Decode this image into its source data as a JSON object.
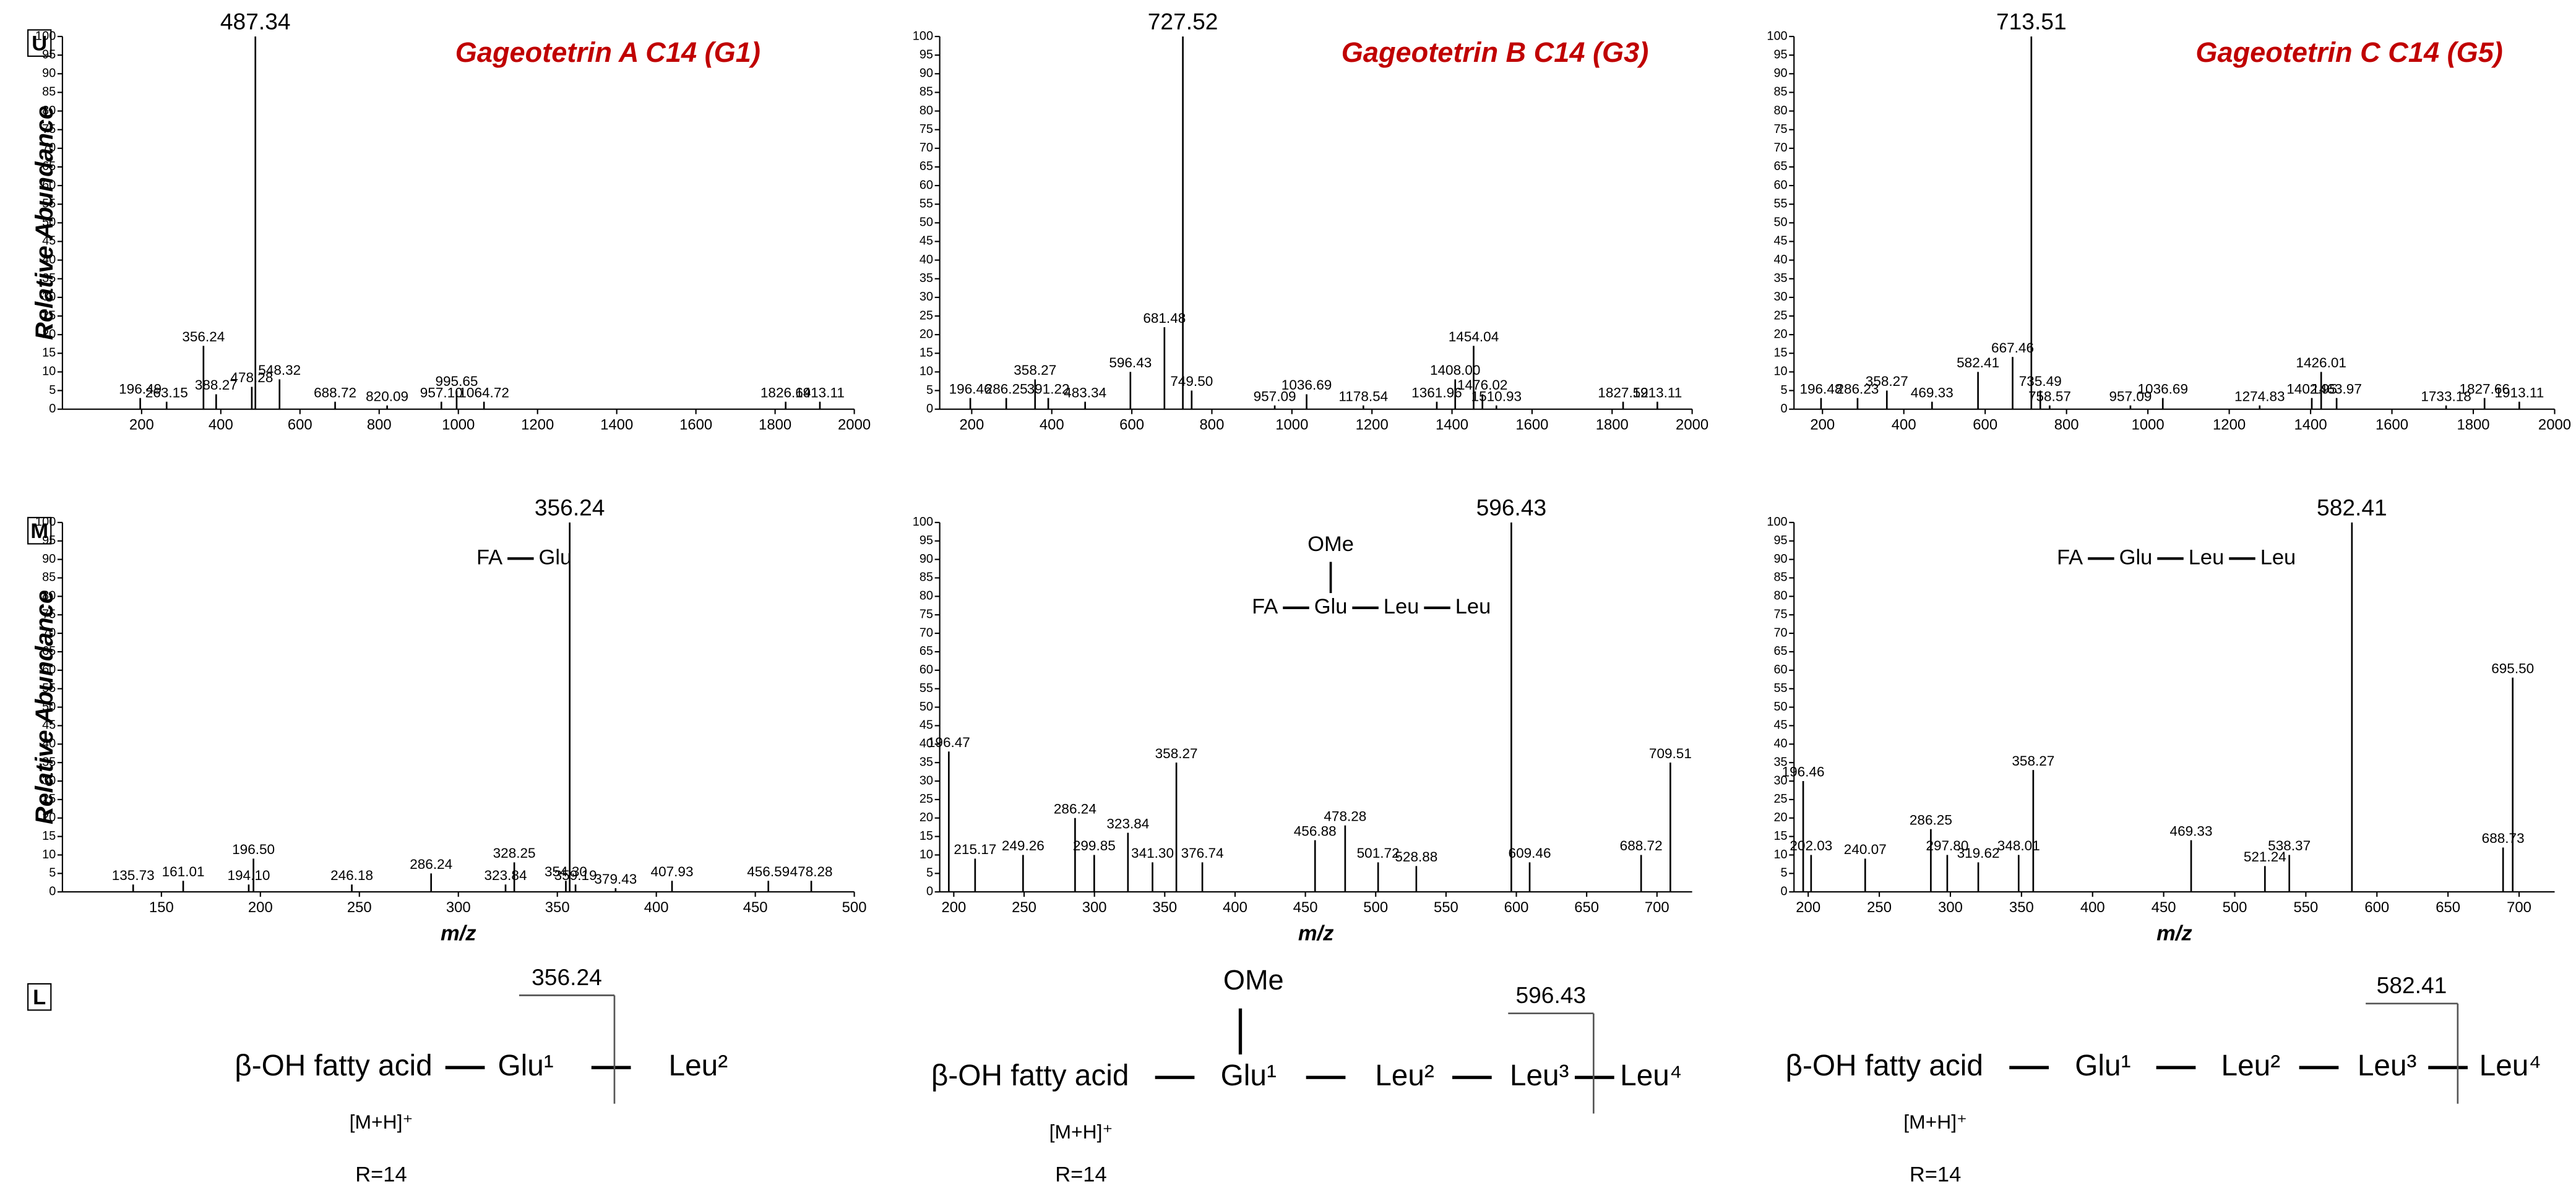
{
  "panel_labels": [
    "U",
    "M",
    "L"
  ],
  "chart_data": [
    {
      "type": "stem",
      "title": "Gageotetrin A C14 (G1)",
      "ylabel": "Relative Abundance",
      "color": "#000000",
      "xlim": [
        0,
        2000
      ],
      "xticks": [
        200,
        400,
        600,
        800,
        1000,
        1200,
        1400,
        1600,
        1800,
        2000
      ],
      "ylim": [
        0,
        100
      ],
      "yticks": [
        0,
        5,
        10,
        15,
        20,
        25,
        30,
        35,
        40,
        45,
        50,
        55,
        60,
        65,
        70,
        75,
        80,
        85,
        90,
        95,
        100
      ],
      "x": [
        196.49,
        263.15,
        356.24,
        388.27,
        478.28,
        487.34,
        548.32,
        688.72,
        820.09,
        957.1,
        995.65,
        1064.72,
        1826.64,
        1913.11
      ],
      "x_labels": [
        "196.49",
        "263.15",
        "356.24",
        "388.27",
        "478.28",
        "487.34",
        "548.32",
        "688.72",
        "820.09",
        "957.10",
        "995.65",
        "1064.72",
        "1826.64",
        "1913.11"
      ],
      "values": [
        3,
        2,
        17,
        4,
        6,
        100,
        8,
        2,
        1,
        2,
        5,
        2,
        2,
        2
      ]
    },
    {
      "type": "stem",
      "title": "Gageotetrin B C14 (G3)",
      "color": "#000000",
      "xlim": [
        120,
        2000
      ],
      "xticks": [
        200,
        400,
        600,
        800,
        1000,
        1200,
        1400,
        1600,
        1800,
        2000
      ],
      "ylim": [
        0,
        100
      ],
      "yticks": [
        0,
        5,
        10,
        15,
        20,
        25,
        30,
        35,
        40,
        45,
        50,
        55,
        60,
        65,
        70,
        75,
        80,
        85,
        90,
        95,
        100
      ],
      "x": [
        196.46,
        286.25,
        358.27,
        391.22,
        483.34,
        596.43,
        681.48,
        727.52,
        749.5,
        957.09,
        1036.69,
        1178.54,
        1361.96,
        1408.0,
        1454.04,
        1476.02,
        1510.93,
        1827.52,
        1913.11
      ],
      "x_labels": [
        "196.46",
        "286.25",
        "358.27",
        "391.22",
        "483.34",
        "596.43",
        "681.48",
        "727.52",
        "749.50",
        "957.09",
        "1036.69",
        "1178.54",
        "1361.96",
        "1408.00",
        "1454.04",
        "1476.02",
        "1510.93",
        "1827.52",
        "1913.11"
      ],
      "values": [
        3,
        3,
        8,
        3,
        2,
        10,
        22,
        100,
        5,
        1,
        4,
        1,
        2,
        8,
        17,
        4,
        1,
        2,
        2
      ]
    },
    {
      "type": "stem",
      "title": "Gageotetrin C C14 (G5)",
      "color": "#000000",
      "xlim": [
        130,
        2000
      ],
      "xticks": [
        200,
        400,
        600,
        800,
        1000,
        1200,
        1400,
        1600,
        1800,
        2000
      ],
      "ylim": [
        0,
        100
      ],
      "yticks": [
        0,
        5,
        10,
        15,
        20,
        25,
        30,
        35,
        40,
        45,
        50,
        55,
        60,
        65,
        70,
        75,
        80,
        85,
        90,
        95,
        100
      ],
      "x": [
        196.48,
        286.23,
        358.27,
        469.33,
        582.41,
        667.46,
        713.51,
        735.49,
        758.57,
        957.09,
        1036.69,
        1274.83,
        1402.95,
        1426.01,
        1463.97,
        1733.18,
        1827.66,
        1913.11
      ],
      "x_labels": [
        "196.48",
        "286.23",
        "358.27",
        "469.33",
        "582.41",
        "667.46",
        "713.51",
        "735.49",
        "758.57",
        "957.09",
        "1036.69",
        "1274.83",
        "1402.95",
        "1426.01",
        "1463.97",
        "1733.18",
        "1827.66",
        "1913.11"
      ],
      "values": [
        3,
        3,
        5,
        2,
        10,
        14,
        100,
        5,
        1,
        1,
        3,
        1,
        3,
        10,
        3,
        1,
        3,
        2
      ]
    },
    {
      "type": "stem",
      "ylabel": "Relative Abundance",
      "xlabel": "m/z",
      "color": "#000000",
      "annotation": {
        "parts": [
          "FA",
          "Glu"
        ]
      },
      "xlim": [
        100,
        500
      ],
      "xticks": [
        150,
        200,
        250,
        300,
        350,
        400,
        450,
        500
      ],
      "ylim": [
        0,
        100
      ],
      "yticks": [
        0,
        5,
        10,
        15,
        20,
        25,
        30,
        35,
        40,
        45,
        50,
        55,
        60,
        65,
        70,
        75,
        80,
        85,
        90,
        95,
        100
      ],
      "x": [
        135.73,
        161.01,
        194.1,
        196.5,
        246.18,
        286.24,
        323.84,
        328.25,
        354.3,
        356.24,
        359.19,
        379.43,
        407.93,
        456.59,
        478.28
      ],
      "x_labels": [
        "135.73",
        "161.01",
        "194.10",
        "196.50",
        "246.18",
        "286.24",
        "323.84",
        "328.25",
        "354.30",
        "356.24",
        "359.19",
        "379.43",
        "407.93",
        "456.59",
        "478.28"
      ],
      "values": [
        2,
        3,
        2,
        9,
        2,
        5,
        2,
        8,
        3,
        100,
        2,
        1,
        3,
        3,
        3
      ]
    },
    {
      "type": "stem",
      "xlabel": "m/z",
      "color": "#000000",
      "annotation": {
        "parts": [
          "FA",
          "Glu",
          "Leu",
          "Leu"
        ],
        "above": "OMe"
      },
      "xlim": [
        190,
        725
      ],
      "xticks": [
        200,
        250,
        300,
        350,
        400,
        450,
        500,
        550,
        600,
        650,
        700
      ],
      "ylim": [
        0,
        100
      ],
      "yticks": [
        0,
        5,
        10,
        15,
        20,
        25,
        30,
        35,
        40,
        45,
        50,
        55,
        60,
        65,
        70,
        75,
        80,
        85,
        90,
        95,
        100
      ],
      "x": [
        196.47,
        215.17,
        249.26,
        286.24,
        299.85,
        323.84,
        341.3,
        358.27,
        376.74,
        456.88,
        478.28,
        501.72,
        528.88,
        596.43,
        609.46,
        688.72,
        709.51
      ],
      "x_labels": [
        "196.47",
        "215.17",
        "249.26",
        "286.24",
        "299.85",
        "323.84",
        "341.30",
        "358.27",
        "376.74",
        "456.88",
        "478.28",
        "501.72",
        "528.88",
        "596.43",
        "609.46",
        "688.72",
        "709.51"
      ],
      "values": [
        38,
        9,
        10,
        20,
        10,
        16,
        8,
        35,
        8,
        14,
        18,
        8,
        7,
        100,
        8,
        10,
        35
      ]
    },
    {
      "type": "stem",
      "xlabel": "m/z",
      "color": "#000000",
      "annotation": {
        "parts": [
          "FA",
          "Glu",
          "Leu",
          "Leu"
        ]
      },
      "xlim": [
        190,
        725
      ],
      "xticks": [
        200,
        250,
        300,
        350,
        400,
        450,
        500,
        550,
        600,
        650,
        700
      ],
      "ylim": [
        0,
        100
      ],
      "yticks": [
        0,
        5,
        10,
        15,
        20,
        25,
        30,
        35,
        40,
        45,
        50,
        55,
        60,
        65,
        70,
        75,
        80,
        85,
        90,
        95,
        100
      ],
      "x": [
        196.46,
        202.03,
        240.07,
        286.25,
        297.8,
        319.62,
        348.01,
        358.27,
        469.33,
        521.24,
        538.37,
        582.41,
        688.73,
        695.5
      ],
      "x_labels": [
        "196.46",
        "202.03",
        "240.07",
        "286.25",
        "297.80",
        "319.62",
        "348.01",
        "358.27",
        "469.33",
        "521.24",
        "538.37",
        "582.41",
        "688.73",
        "695.50"
      ],
      "values": [
        30,
        10,
        9,
        17,
        10,
        8,
        10,
        33,
        14,
        7,
        10,
        100,
        12,
        58
      ]
    }
  ],
  "schemes": [
    {
      "parts": [
        "β-OH fatty acid",
        "Glu¹",
        "Leu²"
      ],
      "cleavage": "356.24",
      "adduct": "[M+H]⁺",
      "note": "R=14"
    },
    {
      "parts": [
        "β-OH fatty acid",
        "Glu¹",
        "Leu²",
        "Leu³",
        "Leu⁴"
      ],
      "substituent": "OMe",
      "cleavage": "596.43",
      "adduct": "[M+H]⁺",
      "note": "R=14"
    },
    {
      "parts": [
        "β-OH fatty acid",
        "Glu¹",
        "Leu²",
        "Leu³",
        "Leu⁴"
      ],
      "cleavage": "582.41",
      "adduct": "[M+H]⁺",
      "note": "R=14"
    }
  ]
}
